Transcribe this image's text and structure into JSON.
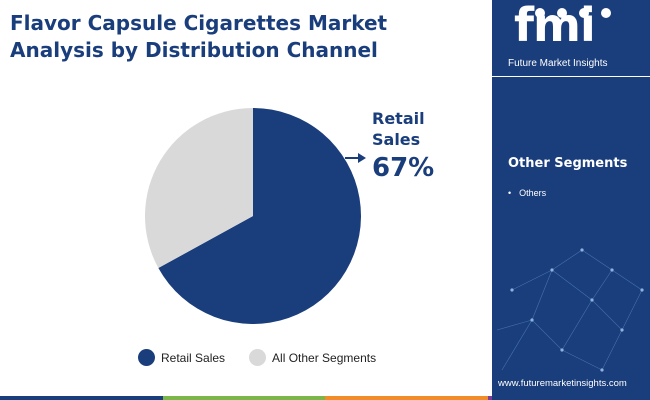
{
  "title": {
    "line1": "Flavor Capsule Cigarettes Market",
    "line2": "Analysis by Distribution Channel"
  },
  "chart_data": {
    "type": "pie",
    "categories": [
      "Retail Sales",
      "All Other Segments"
    ],
    "values": [
      67,
      33
    ],
    "colors": [
      "#1a3d7c",
      "#d9d9d9"
    ],
    "callout": {
      "label_line1": "Retail",
      "label_line2": "Sales",
      "value": "67%"
    },
    "legend_position": "bottom"
  },
  "legend": {
    "items": [
      {
        "label": "Retail Sales",
        "color": "#1a3d7c"
      },
      {
        "label": "All Other Segments",
        "color": "#d9d9d9"
      }
    ]
  },
  "panel": {
    "logo_text": "fmi",
    "logo_subtitle": "Future Market Insights",
    "segments_title": "Other Segments",
    "segments": [
      "Others"
    ],
    "website": "www.futuremarketinsights.com"
  },
  "colors": {
    "brand_navy": "#1a3d7c",
    "pie_gray": "#d9d9d9",
    "bar_green": "#7ab648",
    "bar_orange": "#f28c28",
    "bar_purple": "#7b3f98"
  }
}
